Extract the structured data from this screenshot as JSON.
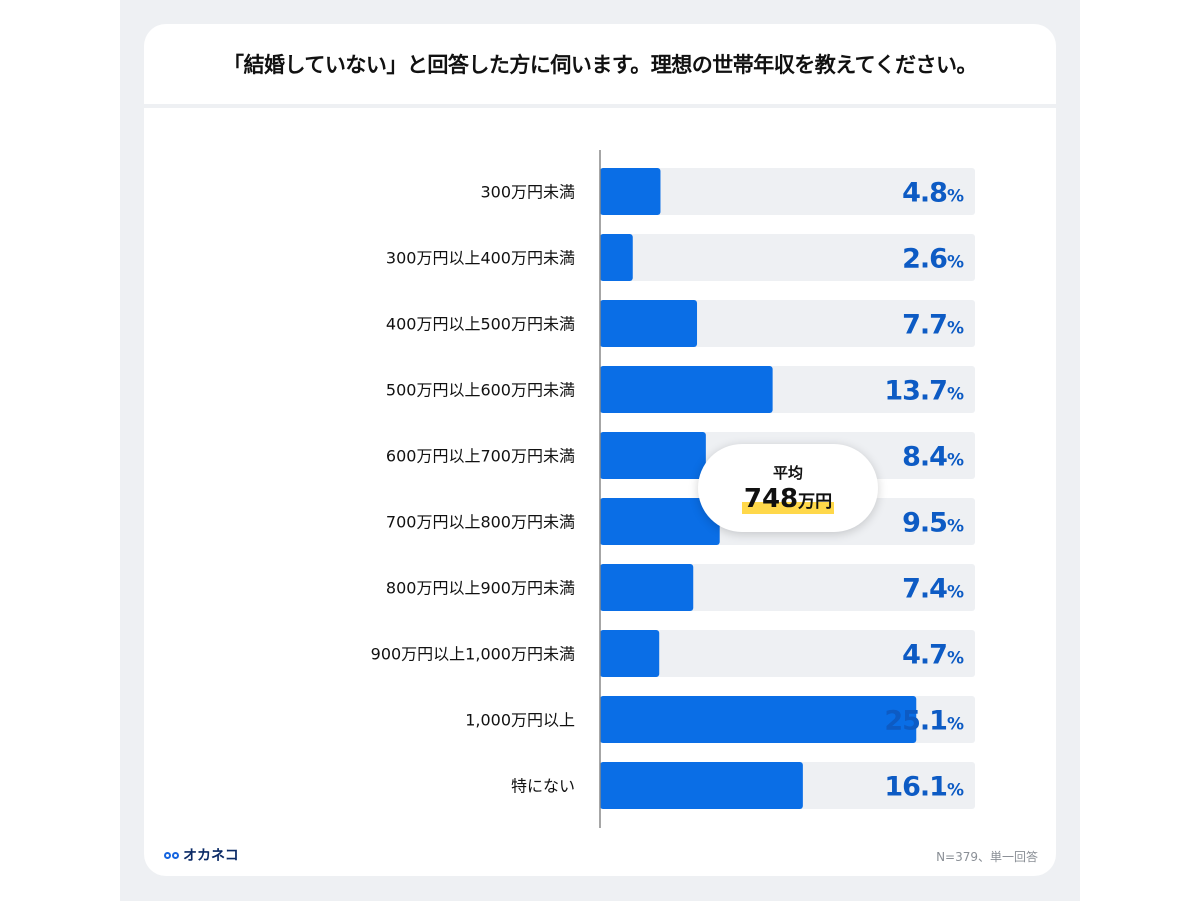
{
  "chart_data": {
    "type": "bar",
    "orientation": "horizontal",
    "title": "「結婚していない」と回答した方に伺います。理想の世帯年収を教えてください。",
    "categories": [
      "300万円未満",
      "300万円以上400万円未満",
      "400万円以上500万円未満",
      "500万円以上600万円未満",
      "600万円以上700万円未満",
      "700万円以上800万円未満",
      "800万円以上900万円未満",
      "900万円以上1,000万円未満",
      "1,000万円以上",
      "特にない"
    ],
    "values": [
      4.8,
      2.6,
      7.7,
      13.7,
      8.4,
      9.5,
      7.4,
      4.7,
      25.1,
      16.1
    ],
    "value_suffix": "%",
    "xlim": [
      0,
      30
    ],
    "grid": false,
    "legend": "none",
    "annotation": {
      "label": "平均",
      "value": "748",
      "unit": "万円"
    }
  },
  "colors": {
    "bar": "#0a6ee6",
    "track": "#eef0f3",
    "value_text": "#0d5bc4",
    "highlight": "#ffd84a"
  },
  "footer": {
    "brand": "オカネコ",
    "note": "N=379、単一回答"
  }
}
